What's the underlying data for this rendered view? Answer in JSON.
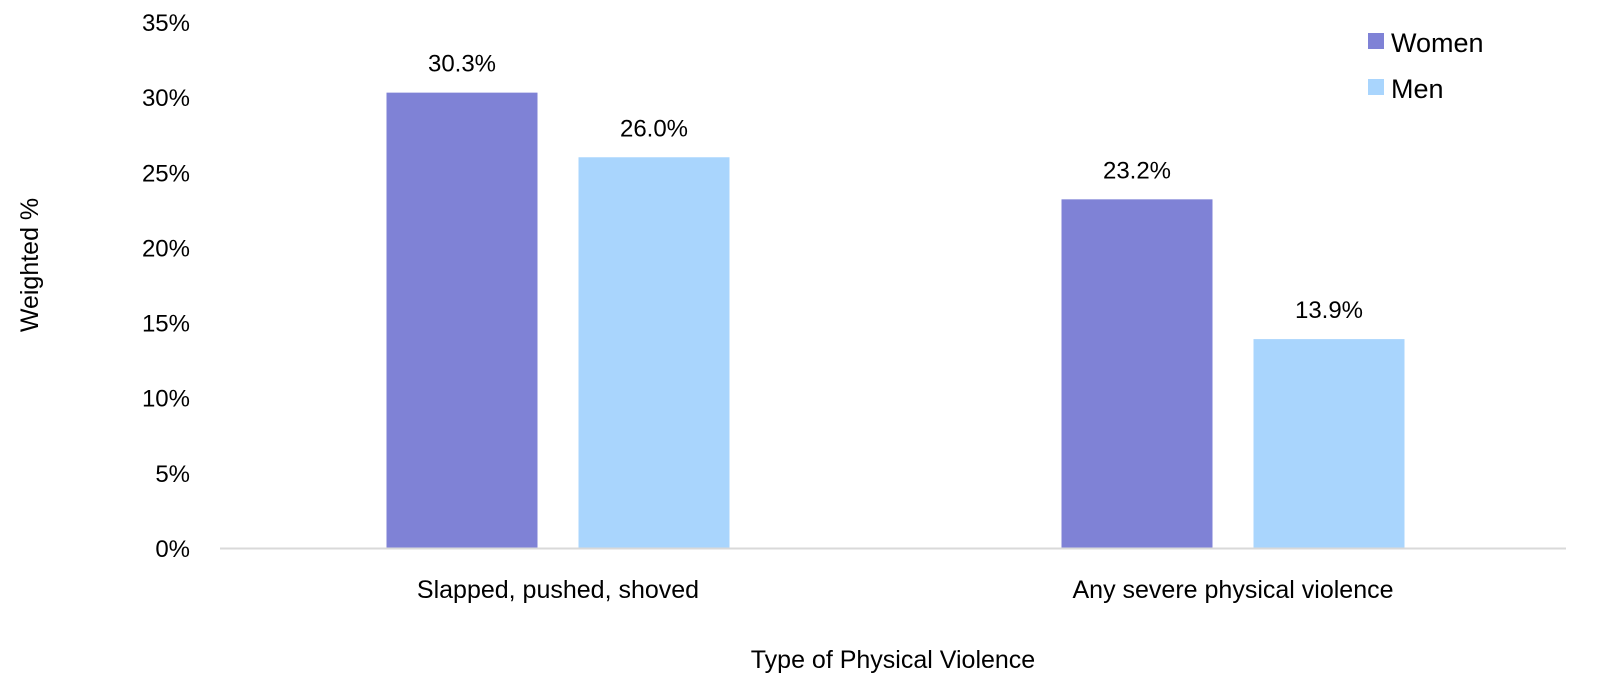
{
  "chart_data": {
    "type": "bar",
    "title": "",
    "xlabel": "Type of Physical Violence",
    "ylabel": "Weighted %",
    "categories": [
      "Slapped, pushed, shoved",
      "Any severe physical violence"
    ],
    "series": [
      {
        "name": "Women",
        "color": "#7f82d6",
        "values": [
          30.3,
          23.2
        ],
        "labels": [
          "30.3%",
          "23.2%"
        ]
      },
      {
        "name": "Men",
        "color": "#a9d5fd",
        "values": [
          26.0,
          13.9
        ],
        "labels": [
          "26.0%",
          "13.9%"
        ]
      }
    ],
    "ylim": [
      0,
      35
    ],
    "yticks": [
      0,
      5,
      10,
      15,
      20,
      25,
      30,
      35
    ],
    "ytick_labels": [
      "0%",
      "5%",
      "10%",
      "15%",
      "20%",
      "25%",
      "30%",
      "35%"
    ],
    "grid": false,
    "legend_position": "top-right",
    "axis_color": "#d9d9d9"
  }
}
